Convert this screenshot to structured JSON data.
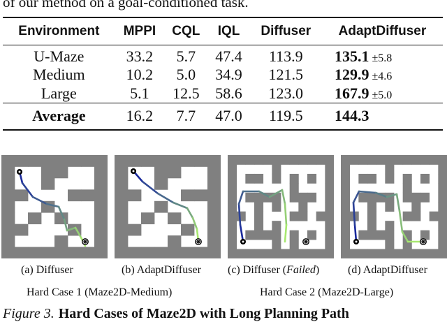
{
  "intro_line": "of our method on a goal-conditioned task.",
  "table": {
    "headers": [
      "Environment",
      "MPPI",
      "CQL",
      "IQL",
      "Diffuser",
      "AdaptDiffuser"
    ],
    "rows": [
      {
        "env": "U-Maze",
        "mppi": "33.2",
        "cql": "5.7",
        "iql": "47.4",
        "diffuser": "113.9",
        "adapt": "135.1",
        "adapt_std": "±5.8"
      },
      {
        "env": "Medium",
        "mppi": "10.2",
        "cql": "5.0",
        "iql": "34.9",
        "diffuser": "121.5",
        "adapt": "129.9",
        "adapt_std": "±4.6"
      },
      {
        "env": "Large",
        "mppi": "5.1",
        "cql": "12.5",
        "iql": "58.6",
        "diffuser": "123.0",
        "adapt": "167.9",
        "adapt_std": "±5.0"
      }
    ],
    "average": {
      "env": "Average",
      "mppi": "16.2",
      "cql": "7.7",
      "iql": "47.0",
      "diffuser": "119.5",
      "adapt": "144.3"
    }
  },
  "panels": [
    {
      "caption_pre": "(a) Diffuser",
      "caption_em": "",
      "caption_post": "",
      "maze": "medium"
    },
    {
      "caption_pre": "(b) AdaptDiffuser",
      "caption_em": "",
      "caption_post": "",
      "maze": "medium"
    },
    {
      "caption_pre": "(c) Diffuser (",
      "caption_em": "Failed",
      "caption_post": ")",
      "maze": "large"
    },
    {
      "caption_pre": "(d) AdaptDiffuser",
      "caption_em": "",
      "caption_post": "",
      "maze": "large"
    }
  ],
  "group_captions": [
    "Hard Case 1 (Maze2D-Medium)",
    "Hard Case 2 (Maze2D-Large)"
  ],
  "figure": {
    "label": "Figure 3.",
    "title": "Hard Cases of Maze2D with Long Planning Path"
  },
  "colors": {
    "wall": "#808080",
    "floor": "#ffffff",
    "path_start": "#1a2a9c",
    "path_end": "#a8e870",
    "marker": "#000000"
  }
}
